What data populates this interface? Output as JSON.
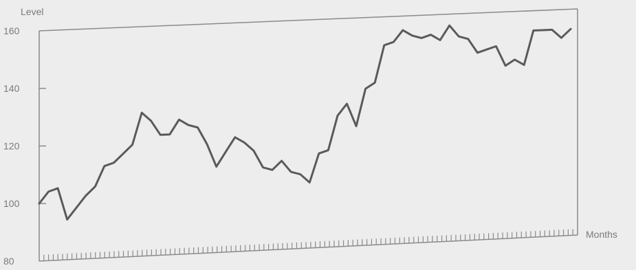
{
  "chart_data": {
    "type": "line",
    "xlabel": "Months",
    "ylabel": "Level",
    "ylim": [
      80,
      160
    ],
    "yticks": [
      80,
      100,
      120,
      140,
      160
    ],
    "grid": false,
    "series": [
      {
        "values": [
          100,
          104,
          105,
          94,
          98,
          102,
          105,
          112,
          113,
          116,
          119,
          130,
          127,
          122,
          122,
          127,
          125,
          124,
          118,
          110,
          115,
          120,
          118,
          115,
          109,
          108,
          111,
          107,
          106,
          103,
          113,
          114,
          126,
          130,
          122,
          135,
          137,
          150,
          151,
          155,
          153,
          152,
          153,
          151,
          156,
          152,
          151,
          146,
          147,
          148,
          141,
          143,
          141,
          153,
          153,
          153,
          150,
          153
        ]
      }
    ]
  },
  "colors": {
    "line": "#5a5a5a",
    "axis": "#8a8a8a",
    "background": "#ededed"
  }
}
